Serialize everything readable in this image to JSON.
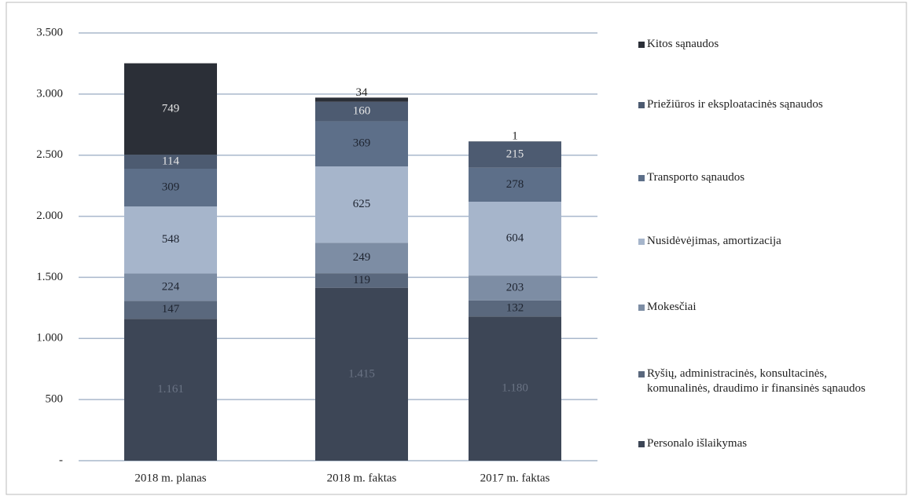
{
  "chart_data": {
    "type": "bar",
    "stacked": true,
    "categories": [
      "2018 m. planas",
      "2018 m. faktas",
      "2017 m. faktas"
    ],
    "series": [
      {
        "name": "Personalo išlaikymas",
        "color": "#3d4656",
        "values": [
          1161,
          1415,
          1180
        ],
        "value_labels": [
          "1.161",
          "1.415",
          "1.180"
        ]
      },
      {
        "name": "Ryšių, administracinės, konsultacinės, komunalinės, draudimo ir finansinės sąnaudos",
        "color": "#5a687d",
        "values": [
          147,
          119,
          132
        ]
      },
      {
        "name": "Mokesčiai",
        "color": "#7d8da4",
        "values": [
          224,
          249,
          203
        ]
      },
      {
        "name": "Nusidėvėjimas, amortizacija",
        "color": "#a6b5cb",
        "values": [
          548,
          625,
          604
        ]
      },
      {
        "name": "Transporto sąnaudos",
        "color": "#5d6f89",
        "values": [
          309,
          369,
          278
        ]
      },
      {
        "name": "Priežiūros ir eksploatacinės sąnaudos",
        "color": "#4d5b71",
        "values": [
          114,
          160,
          215
        ]
      },
      {
        "name": "Kitos sąnaudos",
        "color": "#2b2f37",
        "values": [
          749,
          34,
          1
        ]
      }
    ],
    "ylim": [
      0,
      3500
    ],
    "yticks": [
      {
        "value": 0,
        "label": "-"
      },
      500,
      {
        "value": 1000,
        "label": "1.000"
      },
      {
        "value": 1500,
        "label": "1.500"
      },
      {
        "value": 2000,
        "label": "2.000"
      },
      {
        "value": 2500,
        "label": "2.500"
      },
      {
        "value": 3000,
        "label": "3.000"
      },
      {
        "value": 3500,
        "label": "3.500"
      }
    ],
    "grid": true,
    "legend": "right"
  }
}
